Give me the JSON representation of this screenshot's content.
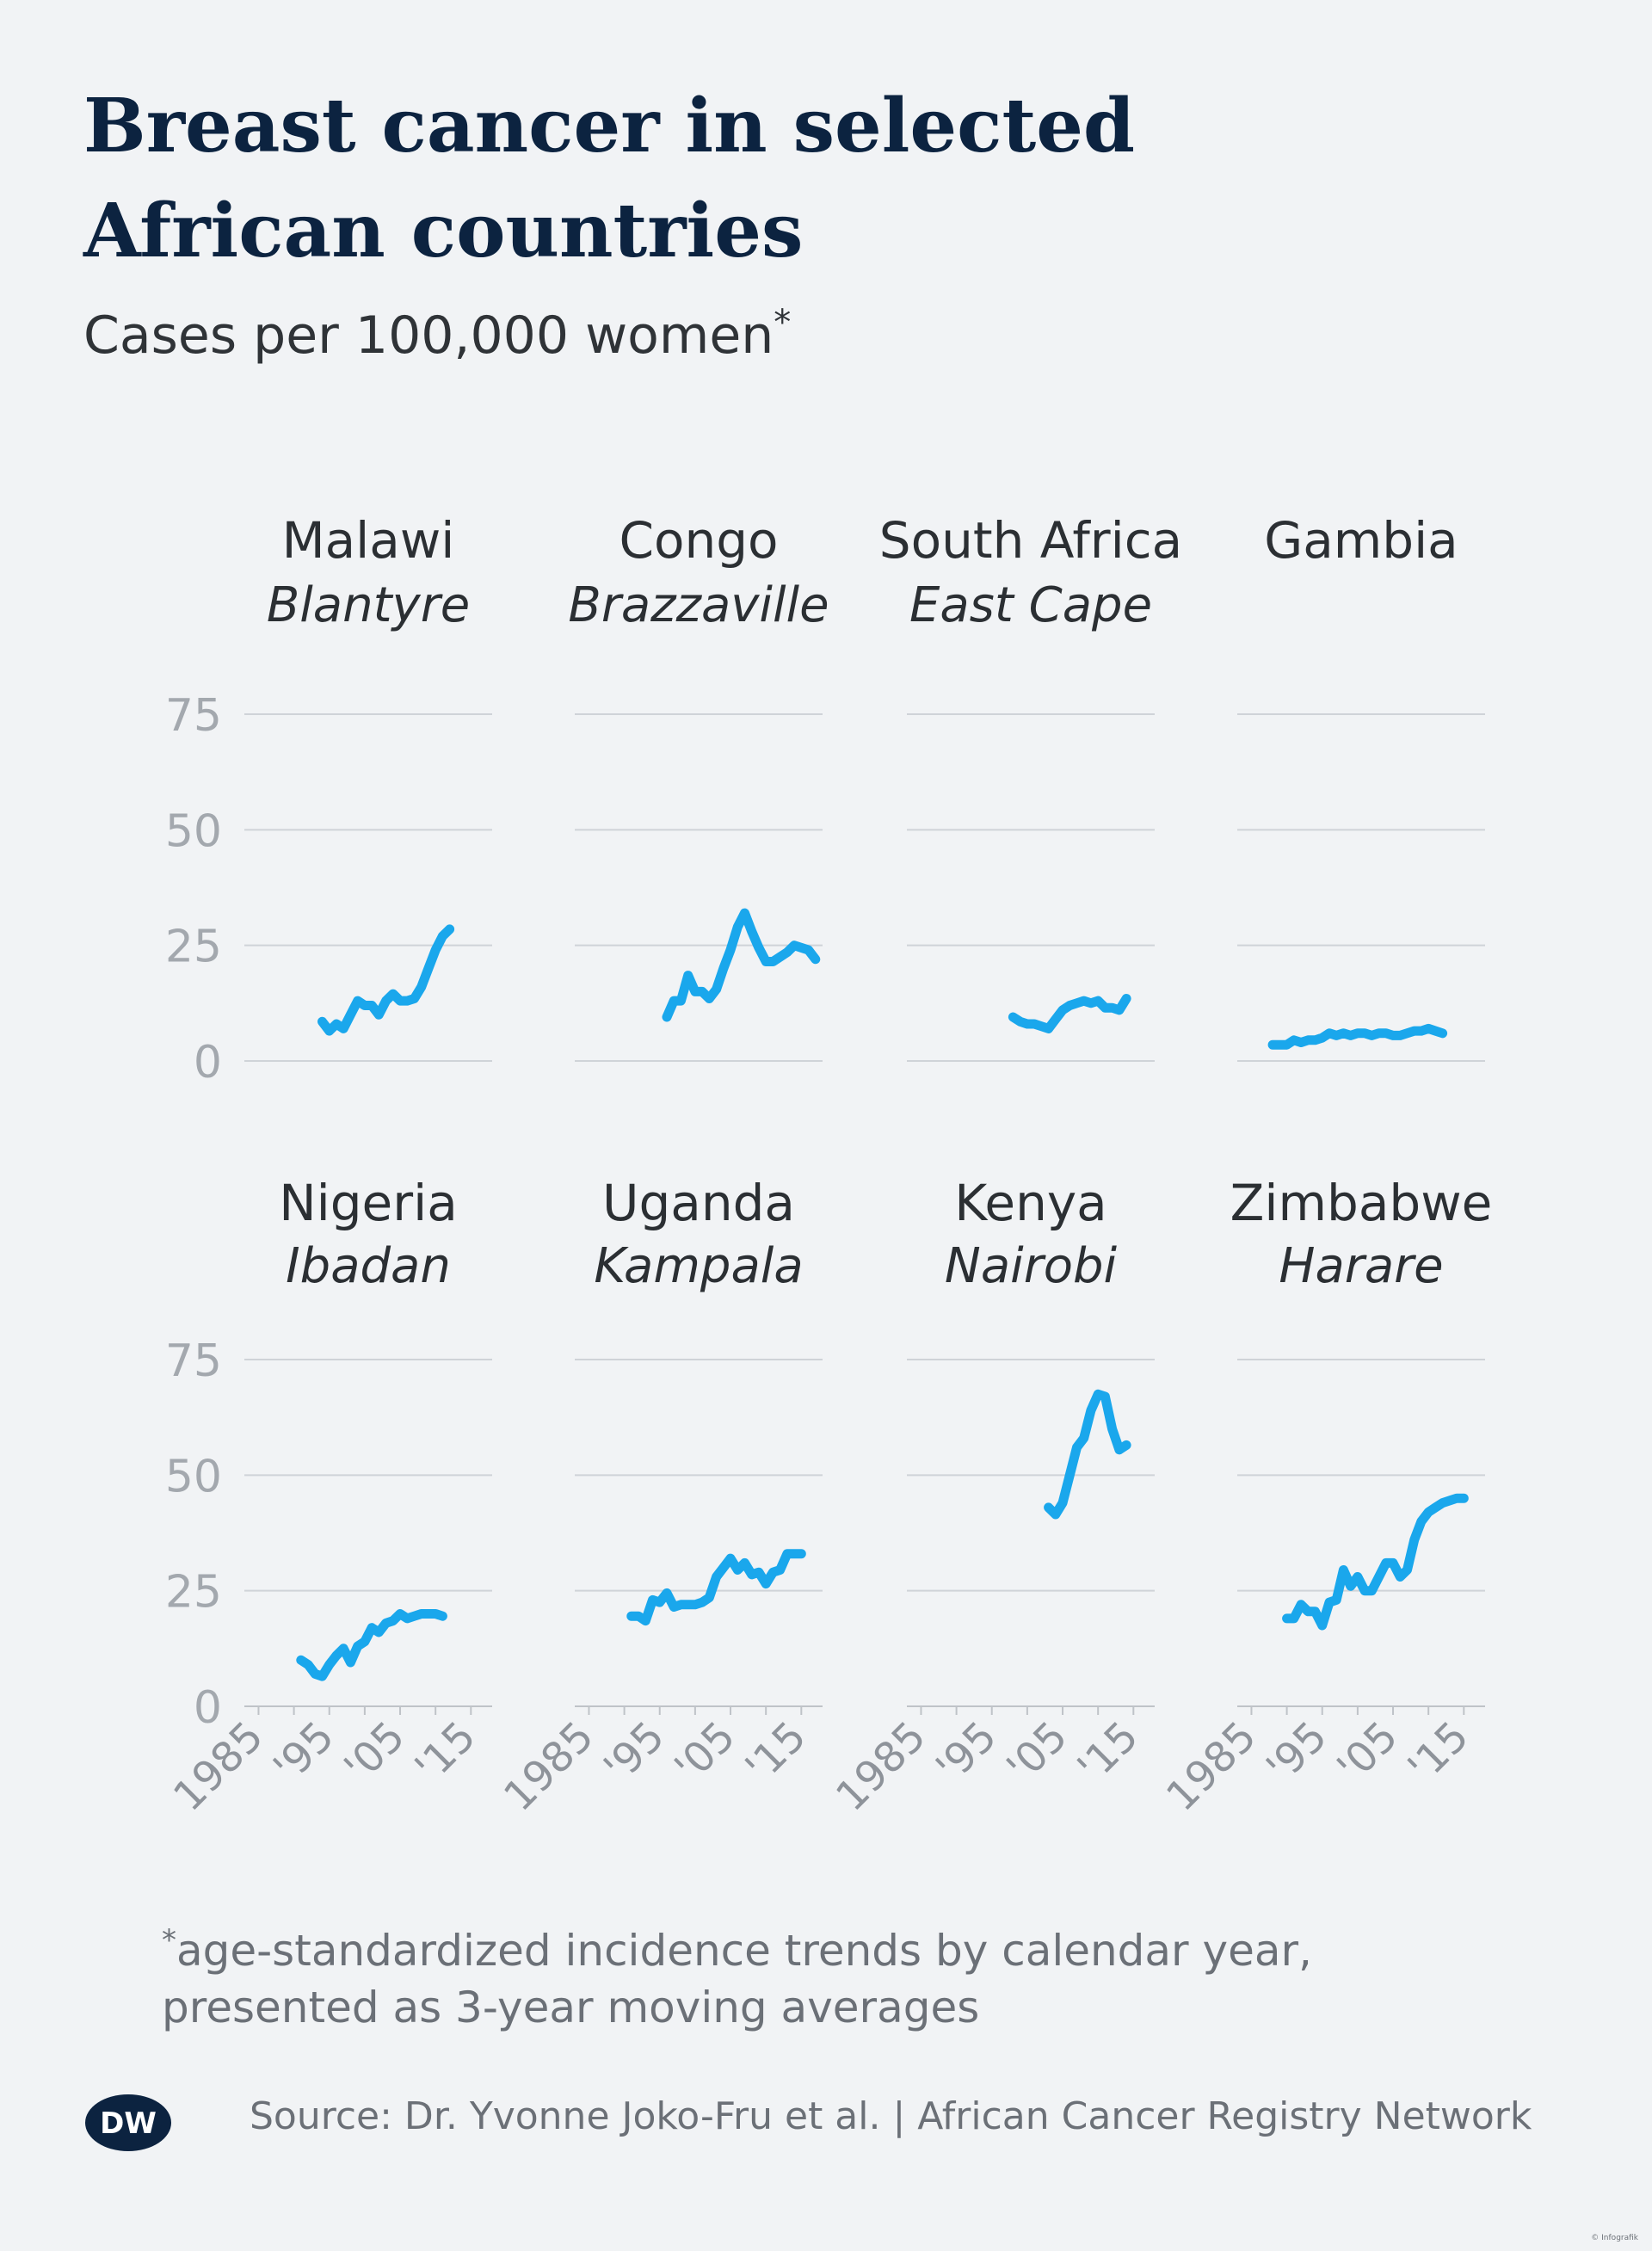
{
  "title": "Breast cancer in selected African countries",
  "subtitle": "Cases per 100,000 women",
  "subtitle_marker": "*",
  "footnote_marker": "*",
  "footnote_line1": "age-standardized incidence trends by calendar year,",
  "footnote_line2": "presented as 3-year moving averages",
  "source": "Source: Dr. Yvonne Joko-Fru et al. | African Cancer Registry Network",
  "logo": "DW",
  "credit": "© Infografik",
  "colors": {
    "line": "#1aa7ec",
    "title": "#0c2340",
    "grid": "#cfd3d8",
    "background": "#f1f3f5"
  },
  "chart_data": [
    {
      "type": "line",
      "country": "Malawi",
      "region": "Blantyre",
      "ylim": [
        0,
        75
      ],
      "yticks": [
        "0",
        "25",
        "50",
        "75"
      ],
      "grid": true,
      "x": [
        1994,
        1995,
        1996,
        1997,
        1998,
        1999,
        2000,
        2001,
        2002,
        2003,
        2004,
        2005,
        2006,
        2007,
        2008,
        2009,
        2010,
        2011,
        2012
      ],
      "values": [
        8.5,
        6.5,
        8,
        7,
        10,
        13,
        12,
        12,
        10,
        13,
        14.5,
        13,
        13,
        13.5,
        16,
        20,
        24,
        27,
        28.5
      ]
    },
    {
      "type": "line",
      "country": "Congo",
      "region": "Brazzaville",
      "ylim": [
        0,
        75
      ],
      "yticks": [
        "0",
        "25",
        "50",
        "75"
      ],
      "grid": true,
      "x": [
        1996,
        1997,
        1998,
        1999,
        2000,
        2001,
        2002,
        2003,
        2004,
        2005,
        2006,
        2007,
        2008,
        2009,
        2010,
        2011,
        2012,
        2013,
        2014,
        2015,
        2016,
        2017
      ],
      "values": [
        9.5,
        13,
        13,
        18.5,
        15,
        15,
        13.5,
        15.5,
        20,
        24,
        29,
        32,
        28,
        24.5,
        21.5,
        21.5,
        22.5,
        23.5,
        25,
        24.5,
        24,
        22
      ]
    },
    {
      "type": "line",
      "country": "South Africa",
      "region": "East Cape",
      "ylim": [
        0,
        75
      ],
      "yticks": [
        "0",
        "25",
        "50",
        "75"
      ],
      "grid": true,
      "x": [
        1998,
        1999,
        2000,
        2001,
        2002,
        2003,
        2004,
        2005,
        2006,
        2007,
        2008,
        2009,
        2010,
        2011,
        2012,
        2013,
        2014
      ],
      "values": [
        9.5,
        8.5,
        8,
        8,
        7.5,
        7,
        9,
        11,
        12,
        12.5,
        13,
        12.5,
        13,
        11.5,
        11.5,
        11,
        13.5
      ]
    },
    {
      "type": "line",
      "country": "Gambia",
      "region": "",
      "ylim": [
        0,
        75
      ],
      "yticks": [
        "0",
        "25",
        "50",
        "75"
      ],
      "grid": true,
      "x": [
        1988,
        1989,
        1990,
        1991,
        1992,
        1993,
        1994,
        1995,
        1996,
        1997,
        1998,
        1999,
        2000,
        2001,
        2002,
        2003,
        2004,
        2005,
        2006,
        2007,
        2008,
        2009,
        2010,
        2011,
        2012
      ],
      "values": [
        3.5,
        3.5,
        3.5,
        4.5,
        4,
        4.5,
        4.5,
        5,
        6,
        5.5,
        6,
        5.5,
        6,
        6,
        5.5,
        6,
        6,
        5.5,
        5.5,
        6,
        6.5,
        6.5,
        7,
        6.5,
        6
      ]
    },
    {
      "type": "line",
      "country": "Nigeria",
      "region": "Ibadan",
      "ylim": [
        0,
        75
      ],
      "yticks": [
        "0",
        "25",
        "50",
        "75"
      ],
      "grid": true,
      "x": [
        1991,
        1992,
        1993,
        1994,
        1995,
        1996,
        1997,
        1998,
        1999,
        2000,
        2001,
        2002,
        2003,
        2004,
        2005,
        2006,
        2007,
        2008,
        2009,
        2010,
        2011
      ],
      "values": [
        10,
        9,
        7,
        6.5,
        9,
        11,
        12.5,
        9.5,
        13,
        14,
        17,
        16,
        18,
        18.5,
        20,
        19,
        19.5,
        20,
        20,
        20,
        19.5
      ]
    },
    {
      "type": "line",
      "country": "Uganda",
      "region": "Kampala",
      "ylim": [
        0,
        75
      ],
      "yticks": [
        "0",
        "25",
        "50",
        "75"
      ],
      "grid": true,
      "x": [
        1991,
        1992,
        1993,
        1994,
        1995,
        1996,
        1997,
        1998,
        1999,
        2000,
        2001,
        2002,
        2003,
        2004,
        2005,
        2006,
        2007,
        2008,
        2009,
        2010,
        2011,
        2012,
        2013,
        2014,
        2015
      ],
      "values": [
        19.5,
        19.5,
        18.5,
        23,
        22.5,
        24.5,
        21.5,
        22,
        22,
        22,
        22.5,
        23.5,
        28,
        30,
        32,
        29.5,
        31,
        28.5,
        29,
        26.5,
        29,
        29.5,
        33,
        33,
        33
      ]
    },
    {
      "type": "line",
      "country": "Kenya",
      "region": "Nairobi",
      "ylim": [
        0,
        75
      ],
      "yticks": [
        "0",
        "25",
        "50",
        "75"
      ],
      "grid": true,
      "x": [
        2003,
        2004,
        2005,
        2006,
        2007,
        2008,
        2009,
        2010,
        2011,
        2012,
        2013,
        2014
      ],
      "values": [
        43,
        41.5,
        44,
        50,
        56,
        58,
        64,
        67.5,
        67,
        60,
        55.5,
        56.5
      ]
    },
    {
      "type": "line",
      "country": "Zimbabwe",
      "region": "Harare",
      "ylim": [
        0,
        75
      ],
      "yticks": [
        "0",
        "25",
        "50",
        "75"
      ],
      "grid": true,
      "x": [
        1990,
        1991,
        1992,
        1993,
        1994,
        1995,
        1996,
        1997,
        1998,
        1999,
        2000,
        2001,
        2002,
        2003,
        2004,
        2005,
        2006,
        2007,
        2008,
        2009,
        2010,
        2011,
        2012,
        2013,
        2014,
        2015
      ],
      "values": [
        19,
        19,
        22,
        20.5,
        20.5,
        17.5,
        22.5,
        23,
        29.5,
        26,
        28,
        25,
        25,
        28,
        31,
        31,
        28,
        29.5,
        36,
        40,
        42,
        43,
        44,
        44.5,
        45,
        45
      ]
    }
  ],
  "xticks": [
    "1985",
    "'95",
    "'05",
    "'15"
  ],
  "xtick_values": [
    1985,
    1995,
    2005,
    2015
  ]
}
